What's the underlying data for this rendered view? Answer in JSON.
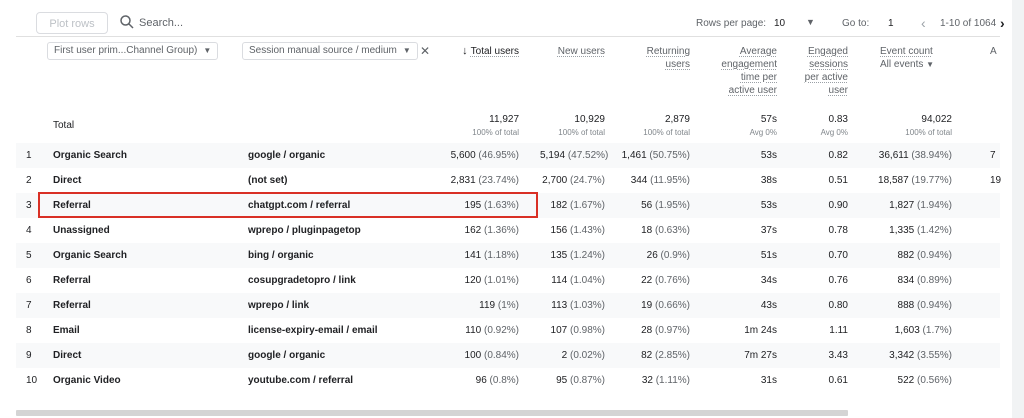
{
  "toolbar": {
    "plot_rows": "Plot rows",
    "search_placeholder": "Search...",
    "rows_per_page_label": "Rows per page:",
    "rows_per_page_value": "10",
    "goto_label": "Go to:",
    "goto_value": "1",
    "page_range": "1-10 of 1064"
  },
  "dimensions": {
    "first": "First user prim...Channel Group)",
    "second": "Session manual source / medium"
  },
  "metrics": [
    {
      "lines": [
        "Total users"
      ],
      "sorted": true
    },
    {
      "lines": [
        "New users"
      ]
    },
    {
      "lines": [
        "Returning",
        "users"
      ]
    },
    {
      "lines": [
        "Average",
        "engagement",
        "time per",
        "active user"
      ]
    },
    {
      "lines": [
        "Engaged",
        "sessions",
        "per active",
        "user"
      ]
    },
    {
      "lines": [
        "Event count"
      ],
      "sub": "All events"
    },
    {
      "lines": [
        "A"
      ]
    }
  ],
  "total": {
    "label": "Total",
    "values": [
      "11,927",
      "10,929",
      "2,879",
      "57s",
      "0.83",
      "94,022"
    ],
    "subs": [
      "100% of total",
      "100% of total",
      "100% of total",
      "Avg 0%",
      "Avg 0%",
      "100% of total"
    ]
  },
  "rows": [
    {
      "n": "1",
      "channel": "Organic Search",
      "source": "google / organic",
      "total": "5,600",
      "total_p": "(46.95%)",
      "new": "5,194",
      "new_p": "(47.52%)",
      "ret": "1,461",
      "ret_p": "(50.75%)",
      "avg": "53s",
      "eng": "0.82",
      "ev": "36,611",
      "ev_p": "(38.94%)",
      "extra": "7"
    },
    {
      "n": "2",
      "channel": "Direct",
      "source": "(not set)",
      "total": "2,831",
      "total_p": "(23.74%)",
      "new": "2,700",
      "new_p": "(24.7%)",
      "ret": "344",
      "ret_p": "(11.95%)",
      "avg": "38s",
      "eng": "0.51",
      "ev": "18,587",
      "ev_p": "(19.77%)",
      "extra": "19"
    },
    {
      "n": "3",
      "channel": "Referral",
      "source": "chatgpt.com / referral",
      "total": "195",
      "total_p": "(1.63%)",
      "new": "182",
      "new_p": "(1.67%)",
      "ret": "56",
      "ret_p": "(1.95%)",
      "avg": "53s",
      "eng": "0.90",
      "ev": "1,827",
      "ev_p": "(1.94%)",
      "extra": ""
    },
    {
      "n": "4",
      "channel": "Unassigned",
      "source": "wprepo / pluginpagetop",
      "total": "162",
      "total_p": "(1.36%)",
      "new": "156",
      "new_p": "(1.43%)",
      "ret": "18",
      "ret_p": "(0.63%)",
      "avg": "37s",
      "eng": "0.78",
      "ev": "1,335",
      "ev_p": "(1.42%)",
      "extra": ""
    },
    {
      "n": "5",
      "channel": "Organic Search",
      "source": "bing / organic",
      "total": "141",
      "total_p": "(1.18%)",
      "new": "135",
      "new_p": "(1.24%)",
      "ret": "26",
      "ret_p": "(0.9%)",
      "avg": "51s",
      "eng": "0.70",
      "ev": "882",
      "ev_p": "(0.94%)",
      "extra": ""
    },
    {
      "n": "6",
      "channel": "Referral",
      "source": "cosupgradetopro / link",
      "total": "120",
      "total_p": "(1.01%)",
      "new": "114",
      "new_p": "(1.04%)",
      "ret": "22",
      "ret_p": "(0.76%)",
      "avg": "34s",
      "eng": "0.76",
      "ev": "834",
      "ev_p": "(0.89%)",
      "extra": ""
    },
    {
      "n": "7",
      "channel": "Referral",
      "source": "wprepo / link",
      "total": "119",
      "total_p": "(1%)",
      "new": "113",
      "new_p": "(1.03%)",
      "ret": "19",
      "ret_p": "(0.66%)",
      "avg": "43s",
      "eng": "0.80",
      "ev": "888",
      "ev_p": "(0.94%)",
      "extra": ""
    },
    {
      "n": "8",
      "channel": "Email",
      "source": "license-expiry-email / email",
      "total": "110",
      "total_p": "(0.92%)",
      "new": "107",
      "new_p": "(0.98%)",
      "ret": "28",
      "ret_p": "(0.97%)",
      "avg": "1m 24s",
      "eng": "1.11",
      "ev": "1,603",
      "ev_p": "(1.7%)",
      "extra": ""
    },
    {
      "n": "9",
      "channel": "Direct",
      "source": "google / organic",
      "total": "100",
      "total_p": "(0.84%)",
      "new": "2",
      "new_p": "(0.02%)",
      "ret": "82",
      "ret_p": "(2.85%)",
      "avg": "7m 27s",
      "eng": "3.43",
      "ev": "3,342",
      "ev_p": "(3.55%)",
      "extra": ""
    },
    {
      "n": "10",
      "channel": "Organic Video",
      "source": "youtube.com / referral",
      "total": "96",
      "total_p": "(0.8%)",
      "new": "95",
      "new_p": "(0.87%)",
      "ret": "32",
      "ret_p": "(1.11%)",
      "avg": "31s",
      "eng": "0.61",
      "ev": "522",
      "ev_p": "(0.56%)",
      "extra": ""
    }
  ]
}
